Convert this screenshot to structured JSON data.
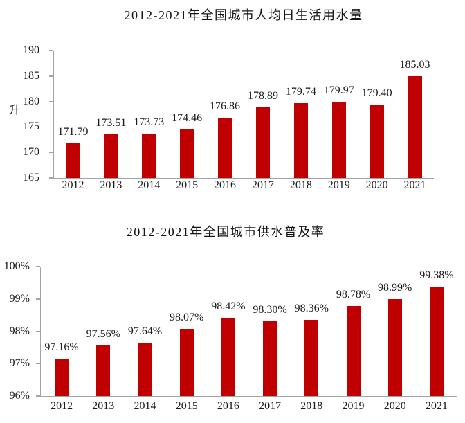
{
  "page": {
    "background": "#ffffff"
  },
  "chart_data": [
    {
      "type": "bar",
      "title": "2012-2021年全国城市人均日生活用水量",
      "ylabel": "升",
      "xlabel": "",
      "categories": [
        "2012",
        "2013",
        "2014",
        "2015",
        "2016",
        "2017",
        "2018",
        "2019",
        "2020",
        "2021"
      ],
      "values": [
        171.79,
        173.51,
        173.73,
        174.46,
        176.86,
        178.89,
        179.74,
        179.97,
        179.4,
        185.03
      ],
      "data_labels": [
        "171.79",
        "173.51",
        "173.73",
        "174.46",
        "176.86",
        "178.89",
        "179.74",
        "179.97",
        "179.40",
        "185.03"
      ],
      "ylim": [
        165,
        190
      ],
      "ytick_step": 5,
      "ytick_labels": [
        "190",
        "185",
        "180",
        "175",
        "170",
        "165"
      ],
      "grid": false,
      "legend": null,
      "bar_color": "#c00000",
      "axis_color": "#a3a3a3",
      "label_color": "#1a1a1a"
    },
    {
      "type": "bar",
      "title": "2012-2021年全国城市供水普及率",
      "ylabel": "",
      "xlabel": "",
      "categories": [
        "2012",
        "2013",
        "2014",
        "2015",
        "2016",
        "2017",
        "2018",
        "2019",
        "2020",
        "2021"
      ],
      "values": [
        97.16,
        97.56,
        97.64,
        98.07,
        98.42,
        98.3,
        98.36,
        98.78,
        98.99,
        99.38
      ],
      "data_labels": [
        "97.16%",
        "97.56%",
        "97.64%",
        "98.07%",
        "98.42%",
        "98.30%",
        "98.36%",
        "98.78%",
        "98.99%",
        "99.38%"
      ],
      "ylim": [
        96,
        100
      ],
      "ytick_step": 1,
      "ytick_labels": [
        "100%",
        "99%",
        "98%",
        "97%",
        "96%"
      ],
      "grid": false,
      "legend": null,
      "bar_color": "#c00000",
      "axis_color": "#a3a3a3",
      "label_color": "#1a1a1a"
    }
  ]
}
